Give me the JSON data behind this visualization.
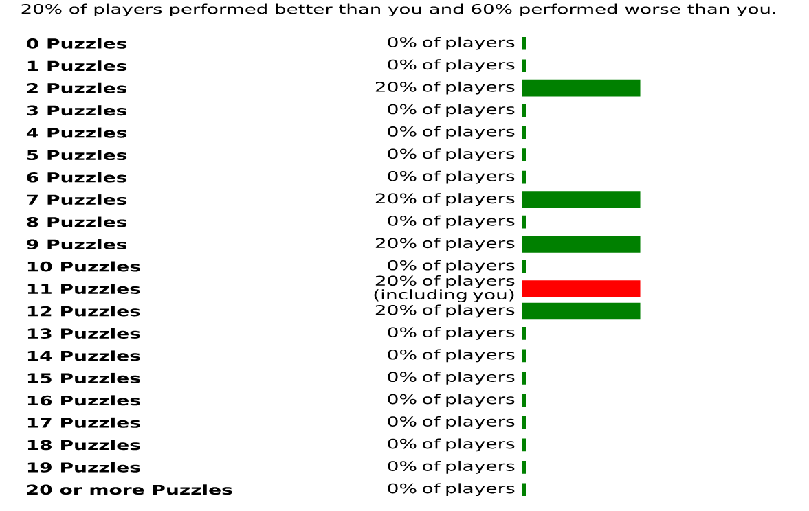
{
  "chart_data": {
    "type": "bar",
    "orientation": "horizontal",
    "title": "20% of players performed better than you and 60% performed worse than you.",
    "categories": [
      "0 Puzzles",
      "1 Puzzles",
      "2 Puzzles",
      "3 Puzzles",
      "4 Puzzles",
      "5 Puzzles",
      "6 Puzzles",
      "7 Puzzles",
      "8 Puzzles",
      "9 Puzzles",
      "10 Puzzles",
      "11 Puzzles",
      "12 Puzzles",
      "13 Puzzles",
      "14 Puzzles",
      "15 Puzzles",
      "16 Puzzles",
      "17 Puzzles",
      "18 Puzzles",
      "19 Puzzles",
      "20 or more Puzzles"
    ],
    "values": [
      0,
      0,
      20,
      0,
      0,
      0,
      0,
      20,
      0,
      20,
      0,
      20,
      20,
      0,
      0,
      0,
      0,
      0,
      0,
      0,
      0
    ],
    "colors": [
      "#008000",
      "#008000",
      "#008000",
      "#008000",
      "#008000",
      "#008000",
      "#008000",
      "#008000",
      "#008000",
      "#008000",
      "#008000",
      "#ff0000",
      "#008000",
      "#008000",
      "#008000",
      "#008000",
      "#008000",
      "#008000",
      "#008000",
      "#008000",
      "#008000"
    ],
    "value_labels": [
      "0% of players",
      "0% of players",
      "20% of players",
      "0% of players",
      "0% of players",
      "0% of players",
      "0% of players",
      "20% of players",
      "0% of players",
      "20% of players",
      "0% of players",
      "20% of players (including you)",
      "20% of players",
      "0% of players",
      "0% of players",
      "0% of players",
      "0% of players",
      "0% of players",
      "0% of players",
      "0% of players",
      "0% of players"
    ]
  }
}
